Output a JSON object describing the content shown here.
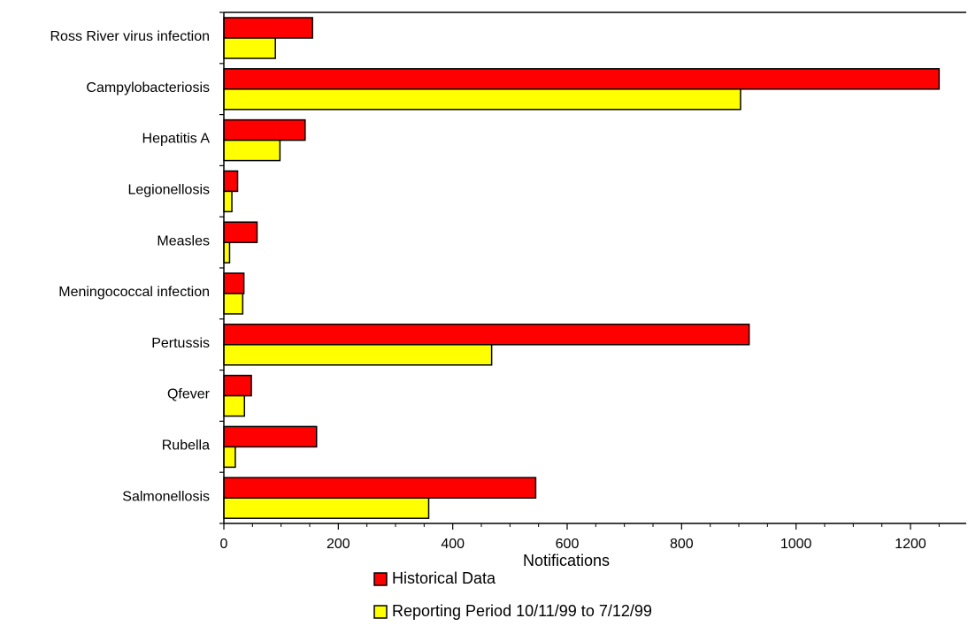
{
  "chart_data": {
    "type": "bar",
    "orientation": "horizontal",
    "title": "",
    "xlabel": "Notifications",
    "ylabel": "",
    "xlim": [
      0,
      1280
    ],
    "xticks": [
      0,
      200,
      400,
      600,
      800,
      1000,
      1200
    ],
    "xtick_labels": [
      "0",
      "200",
      "400",
      "600",
      "800",
      "1000",
      "1200"
    ],
    "grid": false,
    "legend_position": "bottom",
    "categories": [
      "Ross River virus infection",
      "Campylobacteriosis",
      "Hepatitis A",
      "Legionellosis",
      "Measles",
      "Meningococcal infection",
      "Pertussis",
      "Qfever",
      "Rubella",
      "Salmonellosis"
    ],
    "series": [
      {
        "name": "Historical Data",
        "color": "#ff0000",
        "values": [
          155,
          1250,
          142,
          24,
          58,
          35,
          918,
          48,
          162,
          545
        ]
      },
      {
        "name": "Reporting Period 10/11/99 to 7/12/99",
        "color": "#ffff00",
        "values": [
          90,
          903,
          98,
          14,
          10,
          33,
          468,
          36,
          20,
          358
        ]
      }
    ]
  }
}
